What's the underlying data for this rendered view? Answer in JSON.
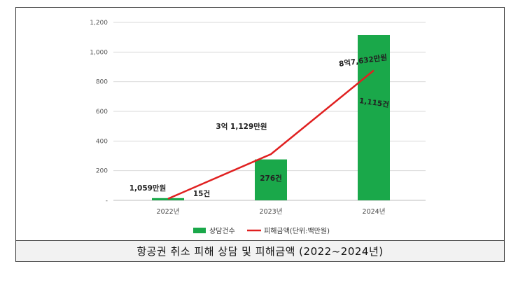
{
  "caption": "항공권 취소 피해 상담 및 피해금액 (2022~2024년)",
  "chart_data": {
    "type": "bar",
    "categories": [
      "2022년",
      "2023년",
      "2024년"
    ],
    "ylim": [
      0,
      1200
    ],
    "yticks": [
      "-",
      "200",
      "400",
      "600",
      "800",
      "1,000",
      "1,200"
    ],
    "ytick_values": [
      0,
      200,
      400,
      600,
      800,
      1000,
      1200
    ],
    "grid": true,
    "legend_position": "bottom",
    "series": [
      {
        "name": "상담건수",
        "type": "bar",
        "color": "#1aa84a",
        "values": [
          15,
          276,
          1115
        ],
        "labels": [
          "15건",
          "276건",
          "1,115건"
        ]
      },
      {
        "name": "피해금액(단위:백만원)",
        "type": "line",
        "color": "#e02020",
        "values": [
          10.59,
          311.29,
          876.32
        ],
        "labels": [
          "1,059만원",
          "3억 1,129만원",
          "8억7,632만원"
        ]
      }
    ]
  }
}
